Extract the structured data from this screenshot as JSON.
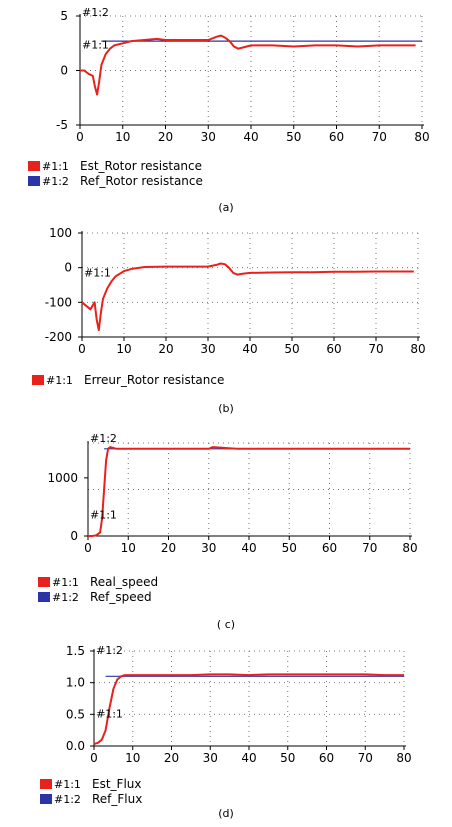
{
  "chart_data": [
    {
      "type": "line",
      "caption": "(a)",
      "xlim": [
        0,
        80
      ],
      "ylim": [
        -5,
        5
      ],
      "xticks": [
        "0",
        "10",
        "20",
        "30",
        "40",
        "50",
        "60",
        "70",
        "80"
      ],
      "yticks": [
        "5",
        "0",
        "-5"
      ],
      "grid": true,
      "series": [
        {
          "name": "Est_Rotor resistance",
          "tag": "#1:1",
          "color": "#e8211c",
          "x": [
            0,
            1,
            2,
            3,
            3.5,
            4,
            4.5,
            5,
            6,
            7,
            8,
            10,
            12,
            15,
            18,
            20,
            25,
            30,
            32,
            33,
            34,
            35,
            36,
            37,
            38,
            40,
            45,
            50,
            55,
            60,
            65,
            70,
            75,
            78.5
          ],
          "y": [
            0,
            0,
            -0.3,
            -0.5,
            -1.5,
            -2.2,
            -1,
            0.5,
            1.5,
            2,
            2.3,
            2.5,
            2.7,
            2.8,
            2.9,
            2.8,
            2.8,
            2.8,
            3.1,
            3.2,
            3,
            2.7,
            2.2,
            2,
            2.1,
            2.3,
            2.3,
            2.2,
            2.3,
            2.3,
            2.2,
            2.3,
            2.3,
            2.3
          ]
        },
        {
          "name": "Ref_Rotor resistance",
          "tag": "#1:2",
          "color": "#2b35a8",
          "x": [
            5,
            80
          ],
          "y": [
            2.7,
            2.7
          ]
        }
      ],
      "legend": [
        {
          "tag": "#1:1",
          "label": "Est_Rotor resistance",
          "color": "#e8211c"
        },
        {
          "tag": "#1:2",
          "label": "Ref_Rotor resistance",
          "color": "#2b35a8"
        }
      ],
      "annotations": [
        {
          "text": "#1:2",
          "x": 0,
          "y": 5
        },
        {
          "text": "#1:1",
          "x": 0,
          "y": 2
        }
      ]
    },
    {
      "type": "line",
      "caption": "(b)",
      "xlim": [
        0,
        80
      ],
      "ylim": [
        -200,
        100
      ],
      "xticks": [
        "0",
        "10",
        "20",
        "30",
        "40",
        "50",
        "60",
        "70",
        "80"
      ],
      "yticks": [
        "100",
        "0",
        "-100",
        "-200"
      ],
      "grid": true,
      "series": [
        {
          "name": "Erreur_Rotor resistance",
          "tag": "#1:1",
          "color": "#e8211c",
          "x": [
            0,
            1,
            2,
            3,
            3.5,
            4,
            4.5,
            5,
            6,
            7,
            8,
            10,
            12,
            15,
            20,
            25,
            30,
            32,
            33,
            34,
            35,
            36,
            37,
            38,
            40,
            45,
            50,
            55,
            60,
            65,
            70,
            75,
            79
          ],
          "y": [
            -100,
            -110,
            -120,
            -100,
            -150,
            -180,
            -130,
            -90,
            -60,
            -40,
            -25,
            -10,
            -3,
            2,
            3,
            3,
            3,
            8,
            12,
            10,
            0,
            -15,
            -20,
            -18,
            -15,
            -14,
            -13,
            -13,
            -12,
            -12,
            -11,
            -11,
            -11
          ]
        }
      ],
      "legend": [
        {
          "tag": "#1:1",
          "label": "Erreur_Rotor resistance",
          "color": "#e8211c"
        }
      ],
      "annotations": [
        {
          "text": "#1:1",
          "x": 0,
          "y": -25
        }
      ]
    },
    {
      "type": "line",
      "caption": "( c)",
      "xlim": [
        0,
        80
      ],
      "ylim": [
        0,
        1600
      ],
      "xticks": [
        "0",
        "10",
        "20",
        "30",
        "40",
        "50",
        "60",
        "70",
        "80"
      ],
      "yticks": [
        "1000",
        "0"
      ],
      "grid": true,
      "series": [
        {
          "name": "Real_speed",
          "tag": "#1:1",
          "color": "#e8211c",
          "x": [
            0,
            1,
            2,
            3,
            3.5,
            4,
            4.5,
            5,
            5.5,
            6,
            7,
            10,
            30,
            31,
            33,
            35,
            37,
            40,
            80
          ],
          "y": [
            0,
            0,
            10,
            60,
            300,
            800,
            1300,
            1500,
            1530,
            1520,
            1500,
            1500,
            1500,
            1530,
            1520,
            1510,
            1500,
            1500,
            1500
          ]
        },
        {
          "name": "Ref_speed",
          "tag": "#1:2",
          "color": "#2b35a8",
          "x": [
            4,
            80
          ],
          "y": [
            1500,
            1500
          ]
        }
      ],
      "legend": [
        {
          "tag": "#1:1",
          "label": "Real_speed",
          "color": "#e8211c"
        },
        {
          "tag": "#1:2",
          "label": "Ref_speed",
          "color": "#2b35a8"
        }
      ],
      "annotations": [
        {
          "text": "#1:2",
          "x": 0,
          "y": 1700
        },
        {
          "text": "#1:1",
          "x": 0,
          "y": 300
        }
      ]
    },
    {
      "type": "line",
      "caption": "(d)",
      "xlim": [
        0,
        80
      ],
      "ylim": [
        0,
        1.5
      ],
      "xticks": [
        "0",
        "10",
        "20",
        "30",
        "40",
        "50",
        "60",
        "70",
        "80"
      ],
      "yticks": [
        "1.5",
        "1.0",
        "0.5",
        "0.0"
      ],
      "grid": true,
      "series": [
        {
          "name": "Est_Flux",
          "tag": "#1:1",
          "color": "#e8211c",
          "x": [
            0,
            1,
            2,
            3,
            4,
            5,
            6,
            7,
            8,
            9,
            10,
            15,
            20,
            25,
            30,
            35,
            40,
            45,
            50,
            55,
            60,
            65,
            70,
            75,
            80
          ],
          "y": [
            0.03,
            0.05,
            0.1,
            0.25,
            0.6,
            0.9,
            1.05,
            1.1,
            1.12,
            1.12,
            1.12,
            1.12,
            1.12,
            1.12,
            1.13,
            1.13,
            1.12,
            1.13,
            1.13,
            1.13,
            1.13,
            1.13,
            1.13,
            1.12,
            1.12
          ]
        },
        {
          "name": "Ref_Flux",
          "tag": "#1:2",
          "color": "#2b35a8",
          "x": [
            3,
            80
          ],
          "y": [
            1.1,
            1.1
          ]
        }
      ],
      "legend": [
        {
          "tag": "#1:1",
          "label": "Est_Flux",
          "color": "#e8211c"
        },
        {
          "tag": "#1:2",
          "label": "Ref_Flux",
          "color": "#2b35a8"
        }
      ],
      "annotations": [
        {
          "text": "#1:2",
          "x": 0,
          "y": 1.45
        },
        {
          "text": "#1:1",
          "x": 0,
          "y": 0.45
        }
      ]
    }
  ]
}
